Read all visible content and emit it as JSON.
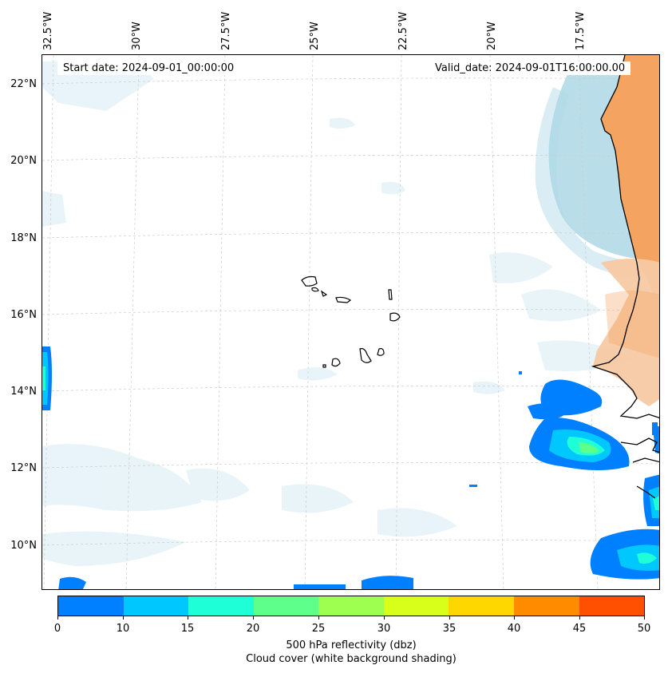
{
  "header": {
    "start_date": "Start date: 2024-09-01_00:00:00",
    "valid_date": "Valid_date: 2024-09-01T16:00:00.00"
  },
  "axes": {
    "longitude_labels": [
      "32.5°W",
      "30°W",
      "27.5°W",
      "25°W",
      "22.5°W",
      "20°W",
      "17.5°W"
    ],
    "latitude_labels": [
      "22°N",
      "20°N",
      "18°N",
      "16°N",
      "14°N",
      "12°N",
      "10°N"
    ]
  },
  "colorbar": {
    "ticks": [
      "0",
      "10",
      "15",
      "20",
      "25",
      "30",
      "35",
      "40",
      "45",
      "50"
    ],
    "colors": [
      "#0080ff",
      "#00c8ff",
      "#1effd8",
      "#5fff8c",
      "#9eff50",
      "#d8ff1a",
      "#ffd700",
      "#ff8c00",
      "#ff4f00"
    ],
    "title": "500 hPa reflectivity (dbz)",
    "subtitle": "Cloud cover (white background shading)"
  },
  "map_colors": {
    "land": "#f4a460",
    "land_light": "#f7c9a3",
    "cloud": "#add8e6",
    "cloud_faint": "#e6f3f8",
    "coastline": "#000000",
    "gridline": "#cccccc"
  }
}
